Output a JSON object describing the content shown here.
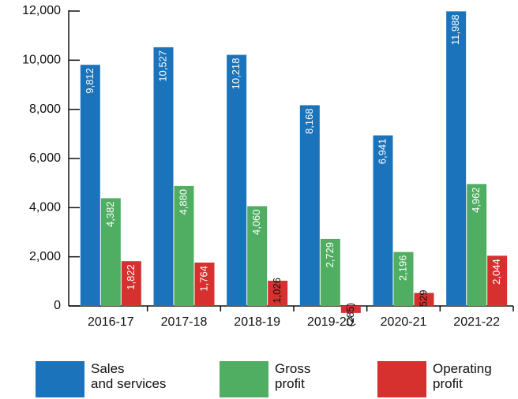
{
  "chart_data": {
    "type": "bar",
    "categories": [
      "2016-17",
      "2017-18",
      "2018-19",
      "2019-20",
      "2020-21",
      "2021-22"
    ],
    "series": [
      {
        "name": "Sales\nand services",
        "color": "#1b74bb",
        "values": [
          9812,
          10527,
          10218,
          8168,
          6941,
          11988
        ],
        "value_labels": [
          "9,812",
          "10,527",
          "10,218",
          "8,168",
          "6,941",
          "11,988"
        ]
      },
      {
        "name": "Gross\nprofit",
        "color": "#4fae62",
        "values": [
          4382,
          4880,
          4060,
          2729,
          2196,
          4962
        ],
        "value_labels": [
          "4,382",
          "4,880",
          "4,060",
          "2,729",
          "2,196",
          "4,962"
        ]
      },
      {
        "name": "Operating\nprofit",
        "color": "#d6302f",
        "values": [
          1822,
          1764,
          1026,
          -285,
          529,
          2044
        ],
        "value_labels": [
          "1,822",
          "1,764",
          "1,026",
          "(285)",
          "529",
          "2,044"
        ]
      }
    ],
    "ylim": [
      0,
      12000
    ],
    "yticks": [
      0,
      {
        "value": 2000,
        "label": "2,000"
      },
      {
        "value": 4000,
        "label": "4,000"
      },
      {
        "value": 6000,
        "label": "6,000"
      },
      {
        "value": 8000,
        "label": "8,000"
      },
      {
        "value": 10000,
        "label": "10,000"
      },
      {
        "value": 12000,
        "label": "12,000"
      }
    ]
  }
}
